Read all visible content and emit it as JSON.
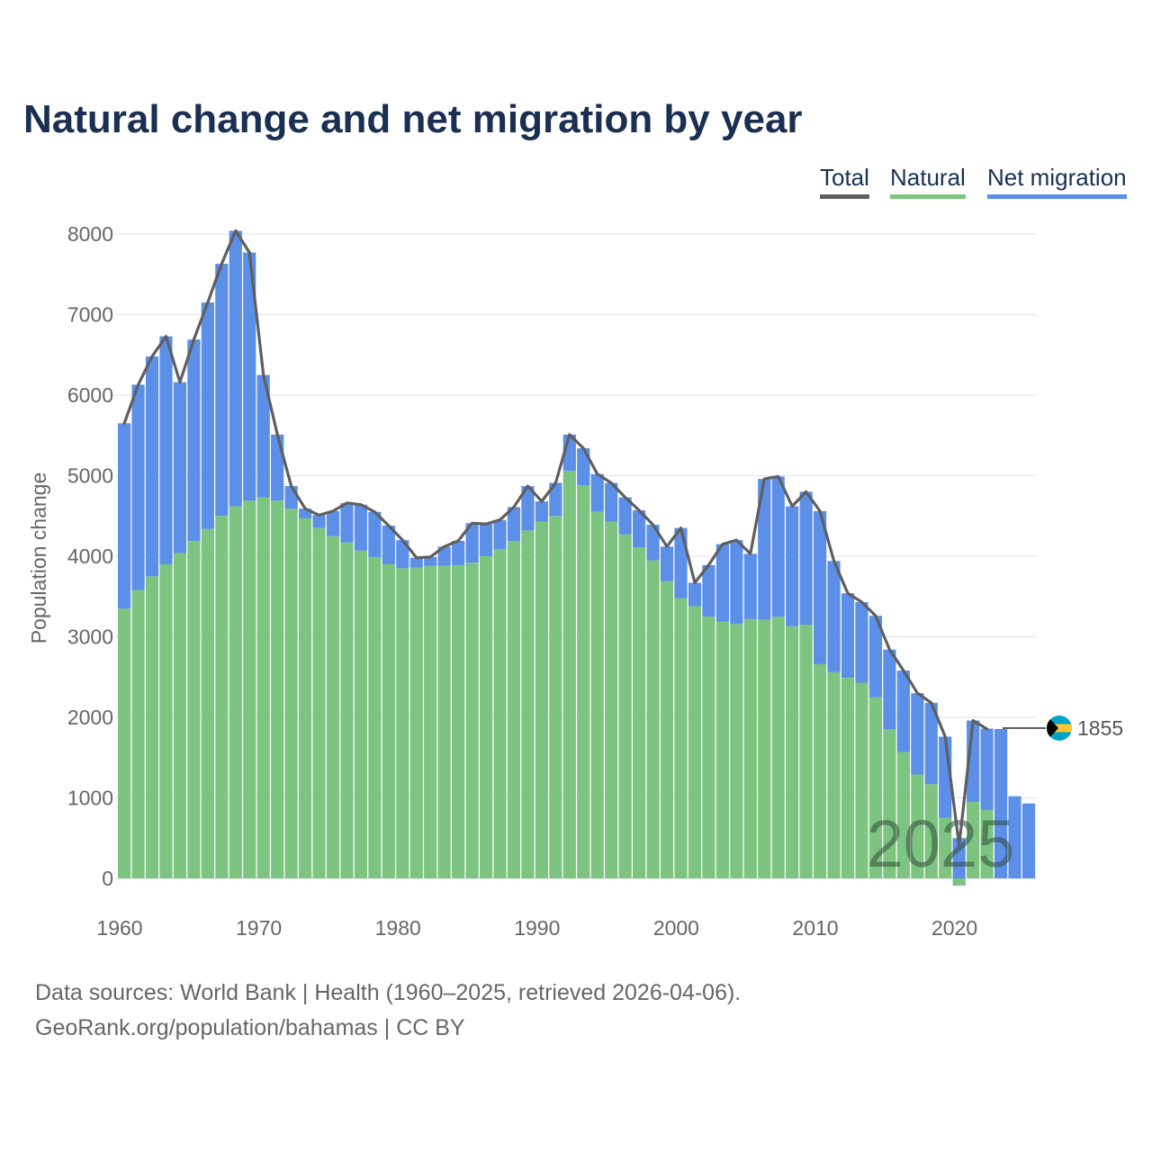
{
  "title": "Natural change and net migration by year",
  "legend": {
    "total": "Total",
    "natural": "Natural",
    "net_migration": "Net migration"
  },
  "colors": {
    "total": "#5f5f5f",
    "natural": "#7cc47f",
    "net_migration": "#5b8fe8",
    "title": "#1b2f52"
  },
  "year_watermark": "2025",
  "end_label": "1855",
  "flag_icon": "bahamas-flag-icon",
  "footer": {
    "line1": "Data sources: World Bank | Health (1960–2025, retrieved 2026-04-06).",
    "line2": "GeoRank.org/population/bahamas | CC BY"
  },
  "chart_data": {
    "type": "bar",
    "title": "Natural change and net migration by year",
    "xlabel": "",
    "ylabel": "Population change",
    "ylim": [
      -150,
      8200
    ],
    "yticks": [
      0,
      1000,
      2000,
      3000,
      4000,
      5000,
      6000,
      7000,
      8000
    ],
    "xticks": [
      1960,
      1970,
      1980,
      1990,
      2000,
      2010,
      2020
    ],
    "years": [
      1960,
      1961,
      1962,
      1963,
      1964,
      1965,
      1966,
      1967,
      1968,
      1969,
      1970,
      1971,
      1972,
      1973,
      1974,
      1975,
      1976,
      1977,
      1978,
      1979,
      1980,
      1981,
      1982,
      1983,
      1984,
      1985,
      1986,
      1987,
      1988,
      1989,
      1990,
      1991,
      1992,
      1993,
      1994,
      1995,
      1996,
      1997,
      1998,
      1999,
      2000,
      2001,
      2002,
      2003,
      2004,
      2005,
      2006,
      2007,
      2008,
      2009,
      2010,
      2011,
      2012,
      2013,
      2014,
      2015,
      2016,
      2017,
      2018,
      2019,
      2020,
      2021,
      2022,
      2023,
      2024,
      2025
    ],
    "series": [
      {
        "name": "Natural",
        "values": [
          3350,
          3580,
          3750,
          3900,
          4040,
          4190,
          4340,
          4500,
          4620,
          4690,
          4730,
          4690,
          4590,
          4470,
          4350,
          4250,
          4170,
          4070,
          3990,
          3900,
          3850,
          3860,
          3880,
          3880,
          3890,
          3920,
          4000,
          4090,
          4190,
          4320,
          4430,
          4500,
          5060,
          4880,
          4550,
          4430,
          4270,
          4110,
          3950,
          3690,
          3480,
          3380,
          3250,
          3190,
          3160,
          3220,
          3210,
          3250,
          3130,
          3150,
          2660,
          2560,
          2490,
          2430,
          2250,
          1850,
          1570,
          1290,
          1170,
          750,
          -90,
          950,
          850,
          0,
          0,
          0
        ]
      },
      {
        "name": "Net migration",
        "values": [
          2300,
          2550,
          2730,
          2830,
          2120,
          2500,
          2810,
          3130,
          3420,
          3080,
          1520,
          820,
          280,
          120,
          160,
          310,
          490,
          570,
          560,
          480,
          350,
          120,
          110,
          240,
          300,
          490,
          400,
          360,
          420,
          550,
          250,
          410,
          450,
          460,
          470,
          480,
          460,
          460,
          440,
          430,
          870,
          290,
          640,
          960,
          1040,
          810,
          1750,
          1740,
          1490,
          1650,
          1900,
          1380,
          1050,
          1000,
          1010,
          990,
          1010,
          1010,
          1010,
          1010,
          500,
          1010,
          1010,
          1855,
          1020,
          930
        ]
      },
      {
        "name": "Total",
        "values": [
          5650,
          6130,
          6480,
          6730,
          6160,
          6690,
          7150,
          7630,
          8040,
          7770,
          6250,
          5510,
          4870,
          4590,
          4510,
          4560,
          4660,
          4640,
          4550,
          4380,
          4200,
          3980,
          3990,
          4120,
          4190,
          4410,
          4400,
          4450,
          4610,
          4870,
          4680,
          4910,
          5510,
          5340,
          5020,
          4910,
          4730,
          4570,
          4390,
          4120,
          4350,
          3670,
          3890,
          4150,
          4200,
          4030,
          4960,
          4990,
          4620,
          4800,
          4560,
          3940,
          3540,
          3430,
          3260,
          2840,
          2580,
          2300,
          2180,
          1760,
          410,
          1960,
          1855,
          null,
          null,
          null
        ]
      }
    ]
  }
}
